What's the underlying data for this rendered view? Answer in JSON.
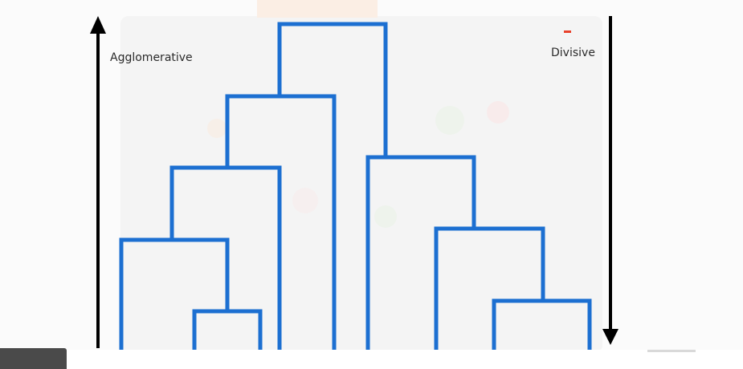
{
  "labels": {
    "agglomerative": "Agglomerative",
    "divisive": "Divisive"
  },
  "colors": {
    "dendrogram": "#1c6fd1",
    "arrow": "#000000",
    "accent_mark": "#e8412b",
    "background": "#fbfbfb"
  },
  "icons": {
    "agglomerative_arrow": "arrow-up-icon",
    "divisive_arrow": "arrow-down-icon"
  }
}
